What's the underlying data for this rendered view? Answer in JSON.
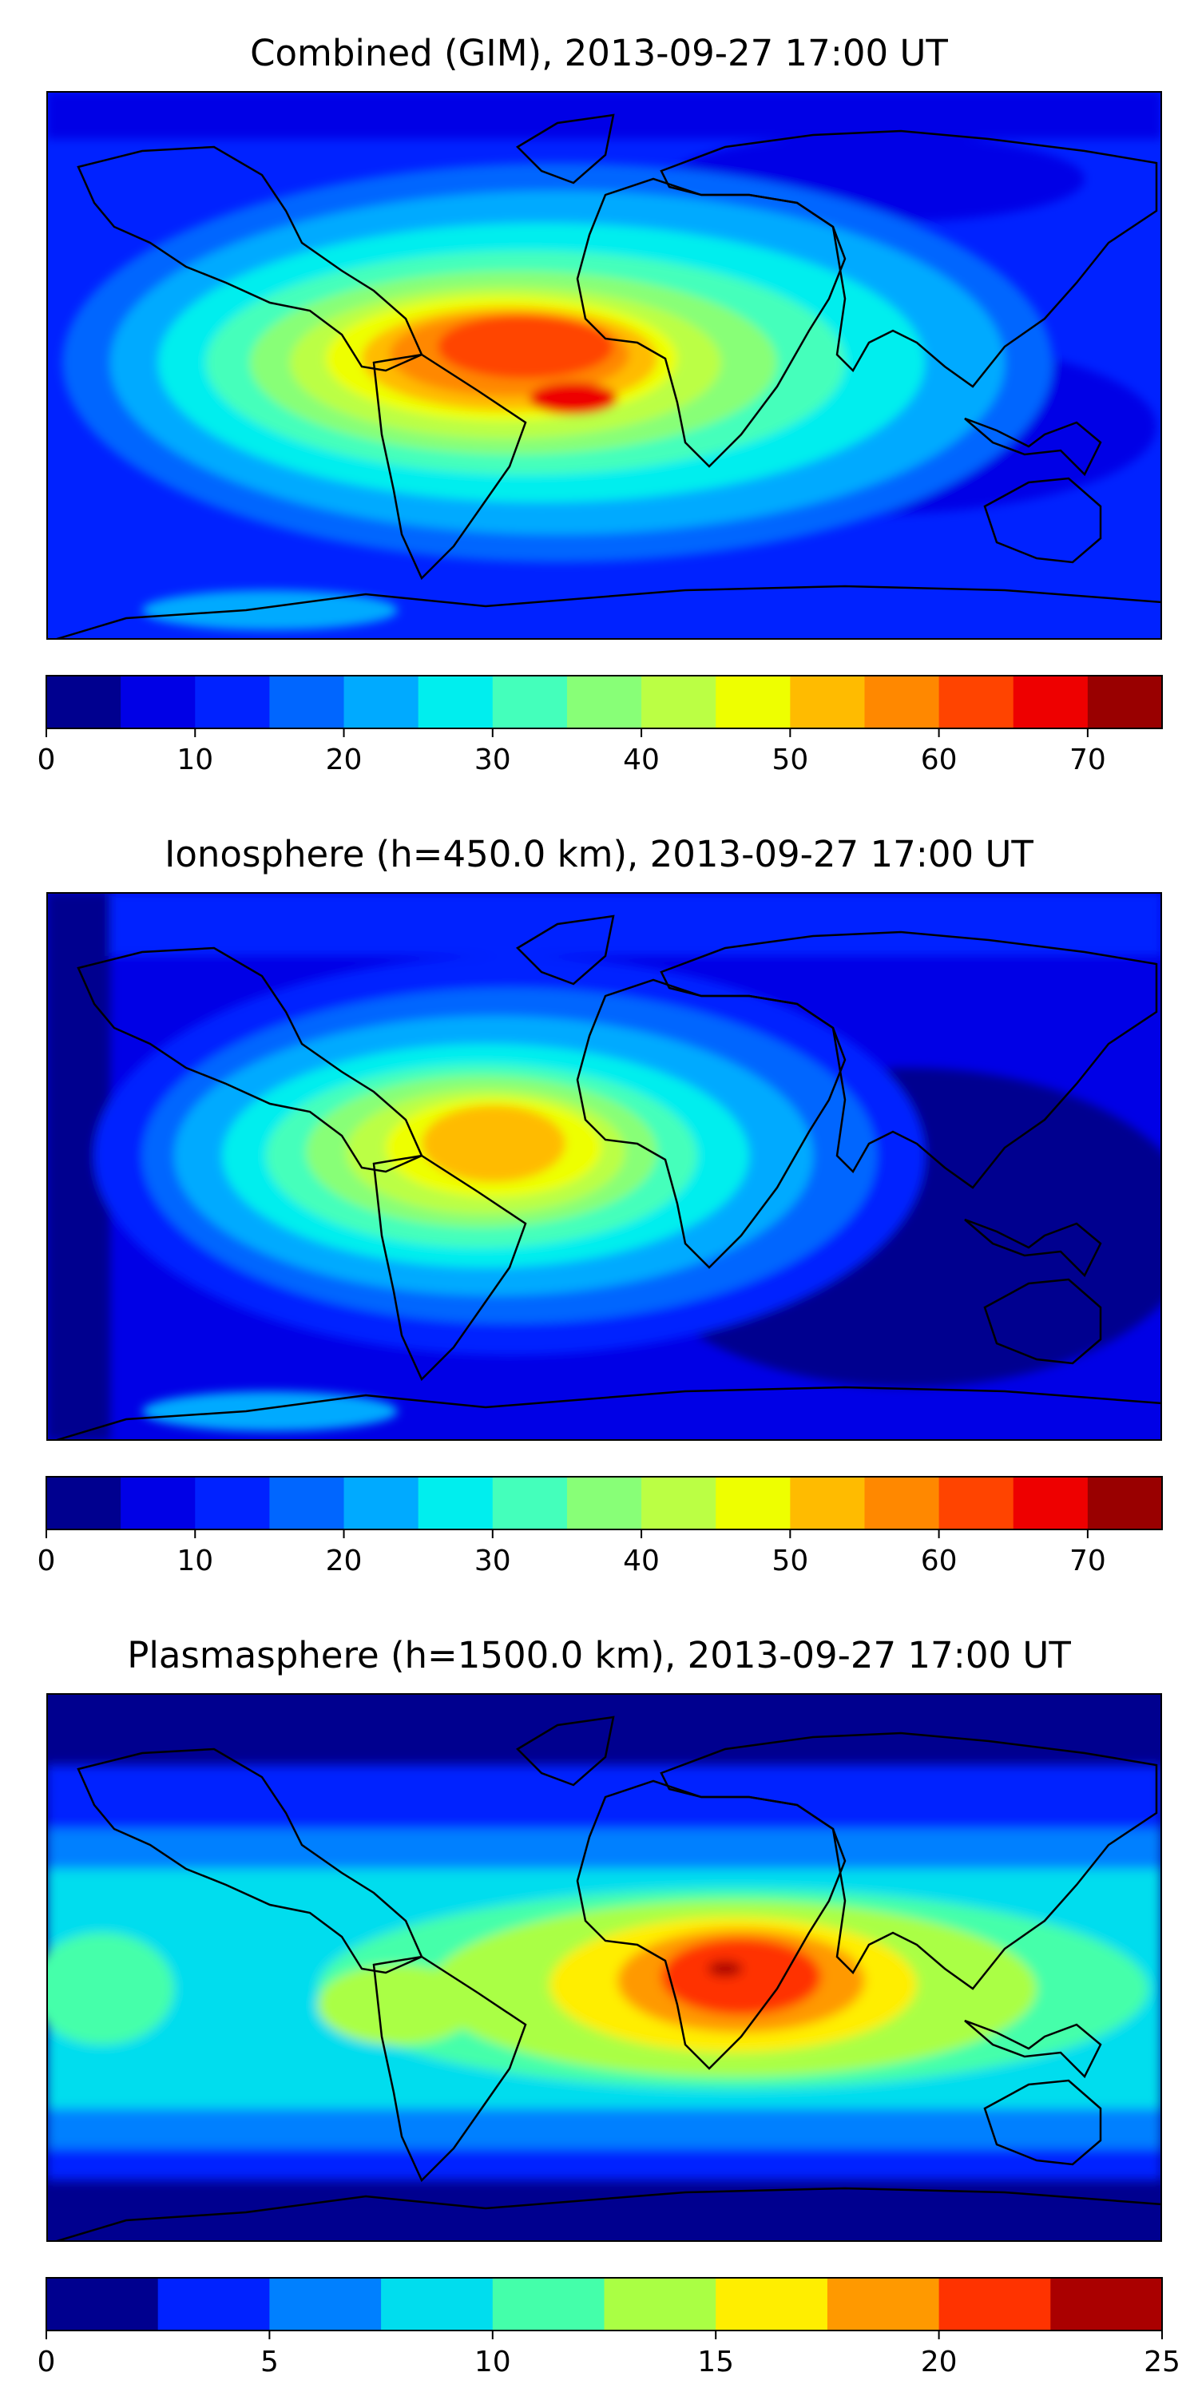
{
  "panels": [
    {
      "title": "Combined (GIM), 2013-09-27 17:00 UT",
      "colorbar": {
        "colors": [
          "#00008f",
          "#0000e6",
          "#0022ff",
          "#0066ff",
          "#00aaff",
          "#00eeee",
          "#44ffbb",
          "#88ff77",
          "#bbff44",
          "#eeff00",
          "#ffbb00",
          "#ff8800",
          "#ff4400",
          "#ee0000",
          "#990000"
        ],
        "tick_values": [
          0,
          10,
          20,
          30,
          40,
          50,
          60,
          70
        ],
        "tick_labels": [
          "0",
          "10",
          "20",
          "30",
          "40",
          "50",
          "60",
          "70"
        ],
        "min": 0,
        "max": 75
      }
    },
    {
      "title": "Ionosphere  (h=450.0 km), 2013-09-27 17:00 UT",
      "colorbar": {
        "colors": [
          "#00008f",
          "#0000e6",
          "#0022ff",
          "#0066ff",
          "#00aaff",
          "#00eeee",
          "#44ffbb",
          "#88ff77",
          "#bbff44",
          "#eeff00",
          "#ffbb00",
          "#ff8800",
          "#ff4400",
          "#ee0000",
          "#990000"
        ],
        "tick_values": [
          0,
          10,
          20,
          30,
          40,
          50,
          60,
          70
        ],
        "tick_labels": [
          "0",
          "10",
          "20",
          "30",
          "40",
          "50",
          "60",
          "70"
        ],
        "min": 0,
        "max": 75
      }
    },
    {
      "title": "Plasmasphere (h=1500.0 km), 2013-09-27 17:00 UT",
      "colorbar": {
        "colors": [
          "#00008f",
          "#0022ff",
          "#0080ff",
          "#00ddee",
          "#44ffaa",
          "#aaff44",
          "#ffee00",
          "#ff9900",
          "#ff3300",
          "#aa0000"
        ],
        "tick_values": [
          0,
          5,
          10,
          15,
          20,
          25
        ],
        "tick_labels": [
          "0",
          "5",
          "10",
          "15",
          "20",
          "25"
        ],
        "min": 0,
        "max": 25
      }
    }
  ]
}
